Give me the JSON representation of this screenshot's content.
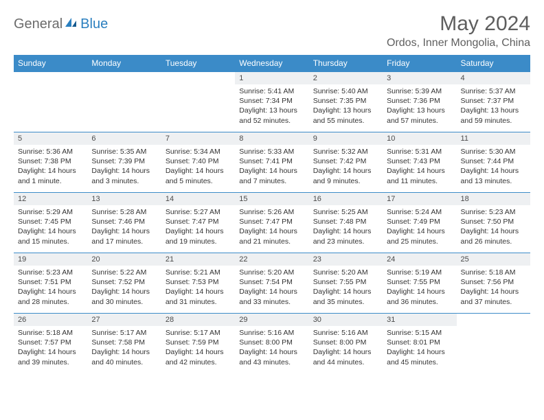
{
  "logo": {
    "general": "General",
    "blue": "Blue"
  },
  "title": "May 2024",
  "location": "Ordos, Inner Mongolia, China",
  "colors": {
    "header_bg": "#3b8bc8",
    "header_text": "#ffffff",
    "border": "#3b8bc8",
    "daynum_bg": "#eef0f2",
    "title_color": "#5e5e5e",
    "logo_gray": "#6b6b6b",
    "logo_blue": "#2a7fbf"
  },
  "weekdays": [
    "Sunday",
    "Monday",
    "Tuesday",
    "Wednesday",
    "Thursday",
    "Friday",
    "Saturday"
  ],
  "weeks": [
    [
      null,
      null,
      null,
      {
        "n": "1",
        "sr": "5:41 AM",
        "ss": "7:34 PM",
        "dl": "13 hours and 52 minutes."
      },
      {
        "n": "2",
        "sr": "5:40 AM",
        "ss": "7:35 PM",
        "dl": "13 hours and 55 minutes."
      },
      {
        "n": "3",
        "sr": "5:39 AM",
        "ss": "7:36 PM",
        "dl": "13 hours and 57 minutes."
      },
      {
        "n": "4",
        "sr": "5:37 AM",
        "ss": "7:37 PM",
        "dl": "13 hours and 59 minutes."
      }
    ],
    [
      {
        "n": "5",
        "sr": "5:36 AM",
        "ss": "7:38 PM",
        "dl": "14 hours and 1 minute."
      },
      {
        "n": "6",
        "sr": "5:35 AM",
        "ss": "7:39 PM",
        "dl": "14 hours and 3 minutes."
      },
      {
        "n": "7",
        "sr": "5:34 AM",
        "ss": "7:40 PM",
        "dl": "14 hours and 5 minutes."
      },
      {
        "n": "8",
        "sr": "5:33 AM",
        "ss": "7:41 PM",
        "dl": "14 hours and 7 minutes."
      },
      {
        "n": "9",
        "sr": "5:32 AM",
        "ss": "7:42 PM",
        "dl": "14 hours and 9 minutes."
      },
      {
        "n": "10",
        "sr": "5:31 AM",
        "ss": "7:43 PM",
        "dl": "14 hours and 11 minutes."
      },
      {
        "n": "11",
        "sr": "5:30 AM",
        "ss": "7:44 PM",
        "dl": "14 hours and 13 minutes."
      }
    ],
    [
      {
        "n": "12",
        "sr": "5:29 AM",
        "ss": "7:45 PM",
        "dl": "14 hours and 15 minutes."
      },
      {
        "n": "13",
        "sr": "5:28 AM",
        "ss": "7:46 PM",
        "dl": "14 hours and 17 minutes."
      },
      {
        "n": "14",
        "sr": "5:27 AM",
        "ss": "7:47 PM",
        "dl": "14 hours and 19 minutes."
      },
      {
        "n": "15",
        "sr": "5:26 AM",
        "ss": "7:47 PM",
        "dl": "14 hours and 21 minutes."
      },
      {
        "n": "16",
        "sr": "5:25 AM",
        "ss": "7:48 PM",
        "dl": "14 hours and 23 minutes."
      },
      {
        "n": "17",
        "sr": "5:24 AM",
        "ss": "7:49 PM",
        "dl": "14 hours and 25 minutes."
      },
      {
        "n": "18",
        "sr": "5:23 AM",
        "ss": "7:50 PM",
        "dl": "14 hours and 26 minutes."
      }
    ],
    [
      {
        "n": "19",
        "sr": "5:23 AM",
        "ss": "7:51 PM",
        "dl": "14 hours and 28 minutes."
      },
      {
        "n": "20",
        "sr": "5:22 AM",
        "ss": "7:52 PM",
        "dl": "14 hours and 30 minutes."
      },
      {
        "n": "21",
        "sr": "5:21 AM",
        "ss": "7:53 PM",
        "dl": "14 hours and 31 minutes."
      },
      {
        "n": "22",
        "sr": "5:20 AM",
        "ss": "7:54 PM",
        "dl": "14 hours and 33 minutes."
      },
      {
        "n": "23",
        "sr": "5:20 AM",
        "ss": "7:55 PM",
        "dl": "14 hours and 35 minutes."
      },
      {
        "n": "24",
        "sr": "5:19 AM",
        "ss": "7:55 PM",
        "dl": "14 hours and 36 minutes."
      },
      {
        "n": "25",
        "sr": "5:18 AM",
        "ss": "7:56 PM",
        "dl": "14 hours and 37 minutes."
      }
    ],
    [
      {
        "n": "26",
        "sr": "5:18 AM",
        "ss": "7:57 PM",
        "dl": "14 hours and 39 minutes."
      },
      {
        "n": "27",
        "sr": "5:17 AM",
        "ss": "7:58 PM",
        "dl": "14 hours and 40 minutes."
      },
      {
        "n": "28",
        "sr": "5:17 AM",
        "ss": "7:59 PM",
        "dl": "14 hours and 42 minutes."
      },
      {
        "n": "29",
        "sr": "5:16 AM",
        "ss": "8:00 PM",
        "dl": "14 hours and 43 minutes."
      },
      {
        "n": "30",
        "sr": "5:16 AM",
        "ss": "8:00 PM",
        "dl": "14 hours and 44 minutes."
      },
      {
        "n": "31",
        "sr": "5:15 AM",
        "ss": "8:01 PM",
        "dl": "14 hours and 45 minutes."
      },
      null
    ]
  ],
  "labels": {
    "sunrise": "Sunrise:",
    "sunset": "Sunset:",
    "daylight": "Daylight:"
  }
}
